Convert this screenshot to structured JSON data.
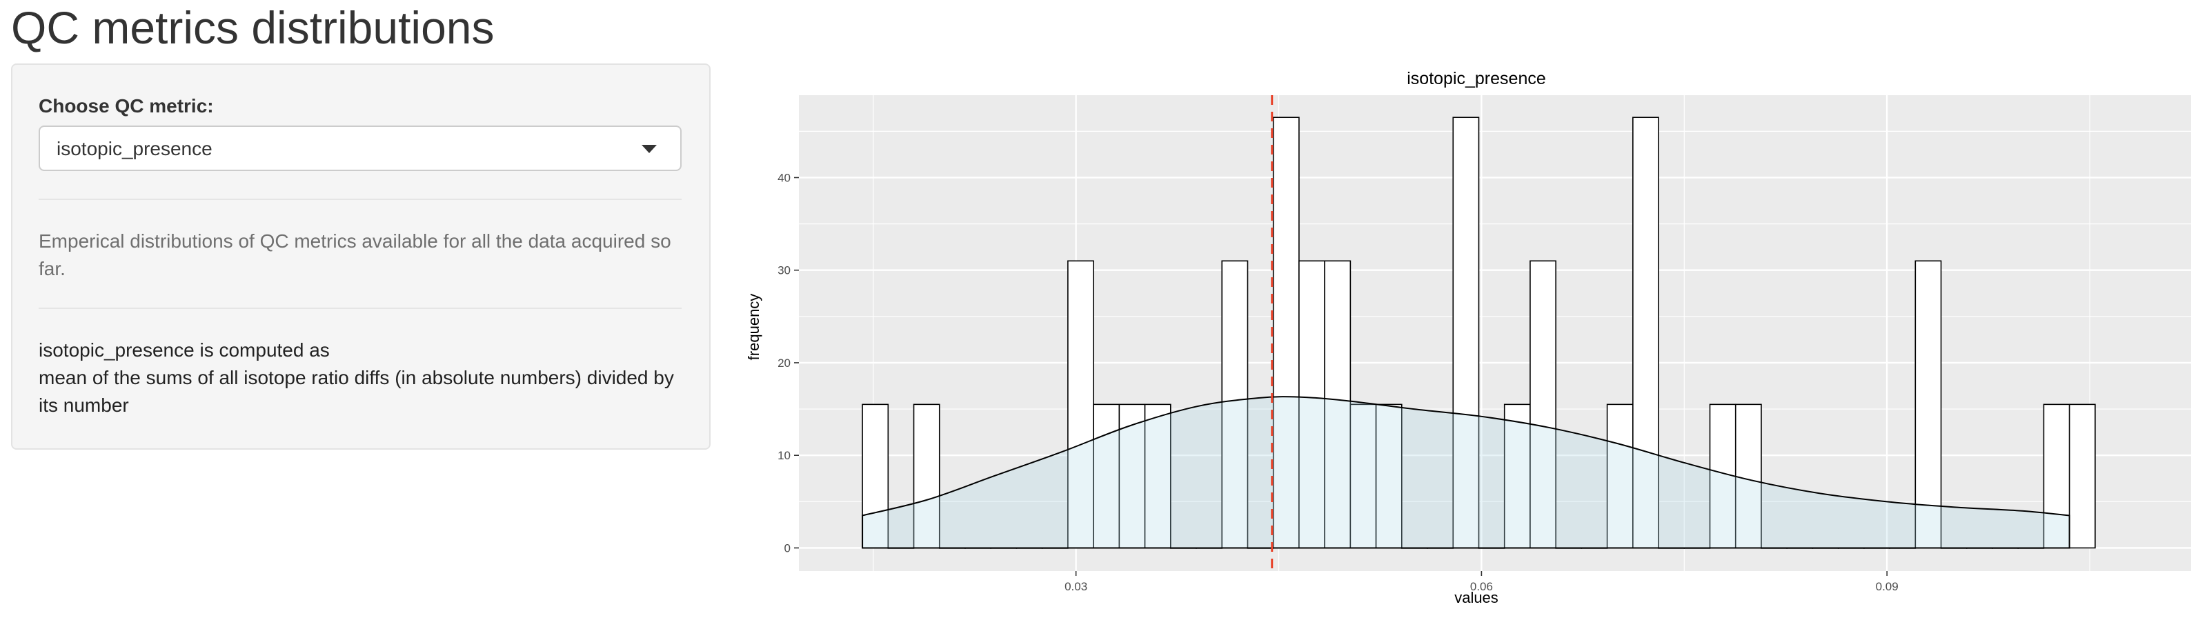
{
  "page": {
    "title": "QC metrics distributions"
  },
  "sidebar": {
    "select_label": "Choose QC metric:",
    "select_value": "isotopic_presence",
    "description": "Emperical distributions of QC metrics available for all the data acquired so far.",
    "definition_line1": "isotopic_presence is computed as",
    "definition_line2": "mean of the sums of all isotope ratio diffs (in absolute numbers) divided by its number"
  },
  "chart_data": {
    "type": "bar",
    "title": "isotopic_presence",
    "xlabel": "values",
    "ylabel": "frequency",
    "xlim": [
      0.0095,
      0.1125
    ],
    "ylim": [
      -2.5,
      48.9
    ],
    "x_ticks": [
      0.03,
      0.06,
      0.09
    ],
    "x_tick_labels": [
      "0.03",
      "0.06",
      "0.09"
    ],
    "y_ticks": [
      0,
      10,
      20,
      30,
      40
    ],
    "y_tick_labels": [
      "0",
      "10",
      "20",
      "30",
      "40"
    ],
    "bin_width": 0.0019,
    "bins_start": [
      0.0142,
      0.0161,
      0.018,
      0.0199,
      0.0218,
      0.0237,
      0.0256,
      0.0275,
      0.0294,
      0.0313,
      0.0332,
      0.0351,
      0.037,
      0.0389,
      0.0408,
      0.0427,
      0.0446,
      0.0465,
      0.0484,
      0.0503,
      0.0522,
      0.0541,
      0.056,
      0.0579,
      0.0598,
      0.0617,
      0.0636,
      0.0655,
      0.0674,
      0.0693,
      0.0712,
      0.0731,
      0.075,
      0.0769,
      0.0788,
      0.0807,
      0.0826,
      0.0845,
      0.0864,
      0.0883,
      0.0902,
      0.0921,
      0.094,
      0.0959,
      0.0978,
      0.0997,
      0.1016,
      0.1035
    ],
    "values": [
      15.5,
      0,
      15.5,
      0,
      0,
      0,
      0,
      0,
      31,
      15.5,
      15.5,
      15.5,
      0,
      0,
      31,
      0,
      46.5,
      31,
      31,
      15.5,
      15.5,
      0,
      0,
      46.5,
      0,
      15.5,
      31,
      0,
      0,
      15.5,
      46.5,
      0,
      0,
      15.5,
      15.5,
      0,
      0,
      0,
      0,
      0,
      0,
      31,
      0,
      0,
      0,
      0,
      15.5,
      15.5
    ],
    "density_curve": {
      "x": [
        0.0142,
        0.019,
        0.024,
        0.029,
        0.034,
        0.039,
        0.0435,
        0.0465,
        0.05,
        0.055,
        0.06,
        0.065,
        0.07,
        0.075,
        0.08,
        0.085,
        0.09,
        0.095,
        0.1,
        0.1035
      ],
      "y": [
        3.5,
        5.2,
        7.8,
        10.4,
        13.2,
        15.3,
        16.2,
        16.3,
        15.9,
        15.0,
        14.2,
        13.0,
        11.3,
        9.2,
        7.3,
        5.9,
        5.0,
        4.4,
        4.0,
        3.5
      ]
    },
    "reference_line": {
      "x": 0.0445,
      "color": "#e8432a",
      "style": "dashed"
    },
    "colors": {
      "panel": "#ebebeb",
      "grid": "#ffffff",
      "bar_fill": "#ffffff",
      "density_fill": "#add8e6"
    },
    "grid": true,
    "legend": "none"
  }
}
